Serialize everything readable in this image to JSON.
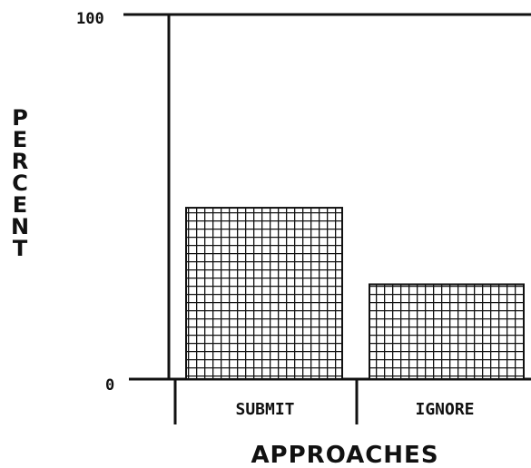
{
  "chart_data": {
    "type": "bar",
    "categories": [
      "SUBMIT",
      "IGNORE"
    ],
    "values": [
      47,
      26
    ],
    "ylim": [
      0,
      100
    ],
    "yticks": [
      "0",
      "100"
    ],
    "xlabel": "APPROACHES",
    "ylabel": "PERCENT",
    "grid": false,
    "bar_fill": "crosshatch",
    "colors": {
      "ink": "#111111",
      "background": "#ffffff"
    }
  }
}
